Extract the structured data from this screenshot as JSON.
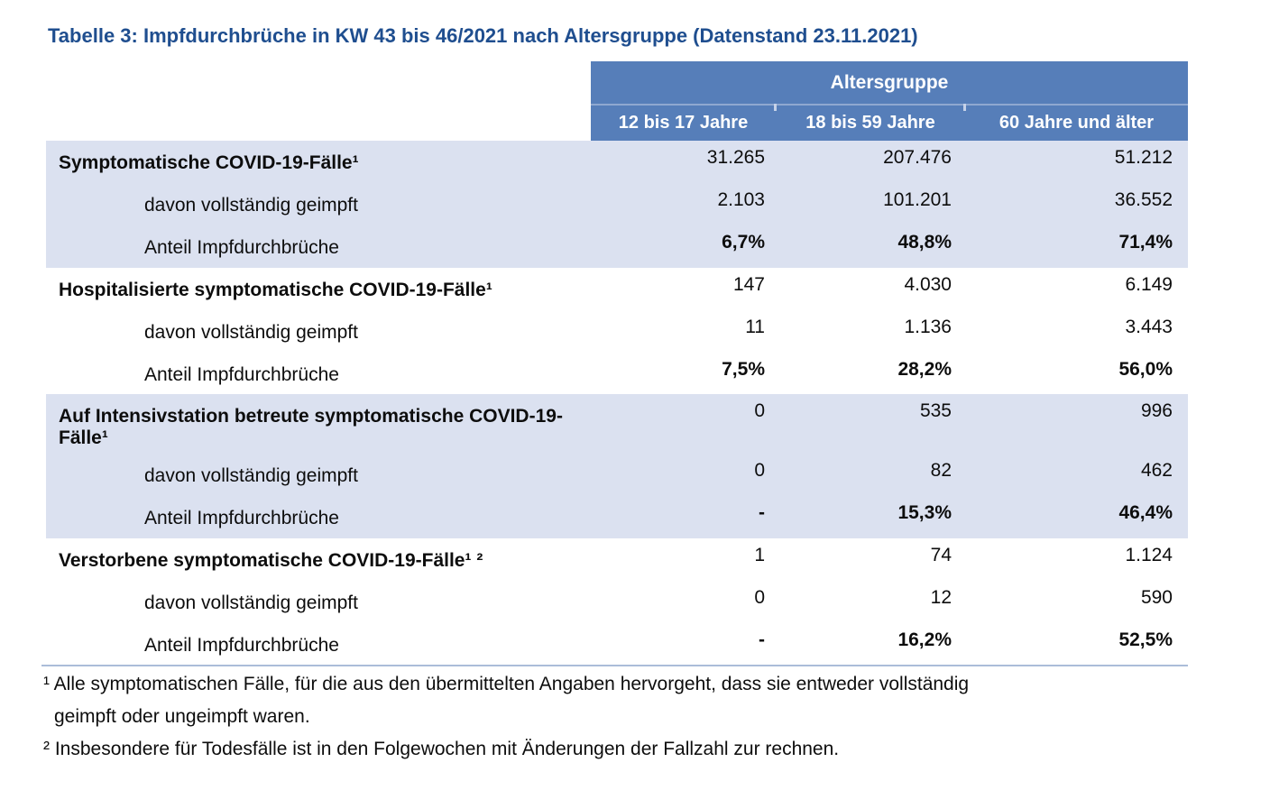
{
  "title": "Tabelle 3: Impfdurchbrüche in KW 43 bis 46/2021 nach Altersgruppe (Datenstand 23.11.2021)",
  "colors": {
    "title_text": "#1f4e8f",
    "header_bg": "#567eb9",
    "header_divider": "#8fa8d0",
    "shaded_row_bg": "#dbe1f0",
    "rule": "#abbdd9"
  },
  "table": {
    "group_header": "Altersgruppe",
    "col_headers": [
      "12 bis 17 Jahre",
      "18 bis 59 Jahre",
      "60 Jahre und älter"
    ],
    "sections": [
      {
        "title": "Symptomatische COVID-19-Fälle¹",
        "title_values": [
          "31.265",
          "207.476",
          "51.212"
        ],
        "rows": [
          {
            "label": "davon vollständig geimpft",
            "values": [
              "2.103",
              "101.201",
              "36.552"
            ]
          },
          {
            "label": "Anteil Impfdurchbrüche",
            "values": [
              "6,7%",
              "48,8%",
              "71,4%"
            ]
          }
        ]
      },
      {
        "title": "Hospitalisierte symptomatische COVID-19-Fälle¹",
        "title_values": [
          "147",
          "4.030",
          "6.149"
        ],
        "rows": [
          {
            "label": "davon vollständig geimpft",
            "values": [
              "11",
              "1.136",
              "3.443"
            ]
          },
          {
            "label": "Anteil Impfdurchbrüche",
            "values": [
              "7,5%",
              "28,2%",
              "56,0%"
            ]
          }
        ]
      },
      {
        "title": "Auf Intensivstation betreute symptomatische COVID-19-Fälle¹",
        "title_values": [
          "0",
          "535",
          "996"
        ],
        "rows": [
          {
            "label": "davon vollständig geimpft",
            "values": [
              "0",
              "82",
              "462"
            ]
          },
          {
            "label": "Anteil Impfdurchbrüche",
            "values": [
              "-",
              "15,3%",
              "46,4%"
            ]
          }
        ]
      },
      {
        "title": "Verstorbene symptomatische COVID-19-Fälle¹ ²",
        "title_values": [
          "1",
          "74",
          "1.124"
        ],
        "rows": [
          {
            "label": "davon vollständig geimpft",
            "values": [
              "0",
              "12",
              "590"
            ]
          },
          {
            "label": "Anteil Impfdurchbrüche",
            "values": [
              "-",
              "16,2%",
              "52,5%"
            ]
          }
        ]
      }
    ]
  },
  "footnotes": [
    {
      "lines": [
        "¹ Alle symptomatischen Fälle, für die aus den übermittelten Angaben hervorgeht, dass sie entweder vollständig",
        "geimpft oder ungeimpft waren."
      ]
    },
    {
      "lines": [
        "² Insbesondere für Todesfälle ist in den Folgewochen mit Änderungen der Fallzahl zur rechnen."
      ]
    }
  ]
}
